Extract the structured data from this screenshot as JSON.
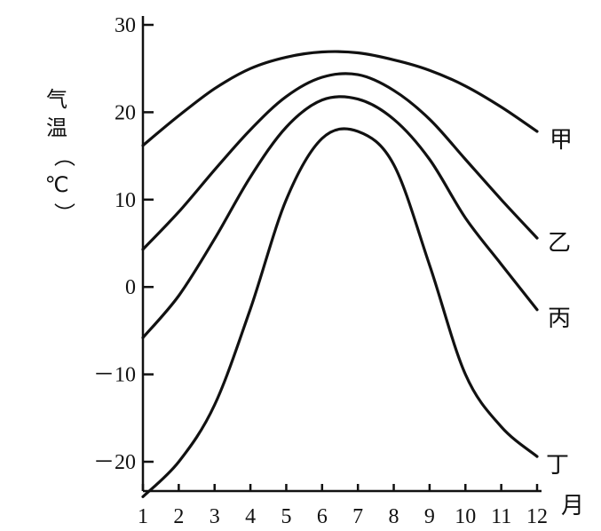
{
  "chart_data": {
    "type": "line",
    "ylabel": "气温（℃）",
    "xlabel": "月",
    "x": [
      1,
      2,
      3,
      4,
      5,
      6,
      7,
      8,
      9,
      10,
      11,
      12
    ],
    "x_tick_labels": [
      "1",
      "2",
      "3",
      "4",
      "5",
      "6",
      "7",
      "8",
      "9",
      "10",
      "11",
      "12"
    ],
    "y_ticks": [
      -20,
      -10,
      0,
      10,
      20,
      30
    ],
    "y_tick_labels": [
      "－20",
      "－10",
      "0",
      "10",
      "20",
      "30"
    ],
    "ylim": [
      -24,
      30
    ],
    "xlim": [
      1,
      12
    ],
    "grid": false,
    "series": [
      {
        "name": "甲",
        "values": [
          16.2,
          19.6,
          22.7,
          25.0,
          26.3,
          26.9,
          26.8,
          26.0,
          24.8,
          23.0,
          20.6,
          17.8
        ]
      },
      {
        "name": "乙",
        "values": [
          4.3,
          8.6,
          13.4,
          18.0,
          21.8,
          24.0,
          24.3,
          22.5,
          19.2,
          14.6,
          10.0,
          5.6
        ]
      },
      {
        "name": "丙",
        "values": [
          -5.8,
          -1.0,
          5.5,
          12.6,
          18.3,
          21.4,
          21.5,
          19.2,
          14.6,
          7.9,
          2.6,
          -2.6
        ]
      },
      {
        "name": "丁",
        "values": [
          -24.0,
          -20.0,
          -13.5,
          -2.5,
          10.0,
          17.0,
          17.8,
          14.0,
          2.5,
          -10.0,
          -16.0,
          -19.4
        ]
      }
    ]
  }
}
